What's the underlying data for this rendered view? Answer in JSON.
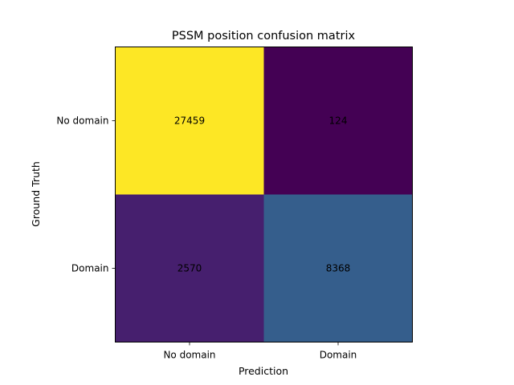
{
  "chart_data": {
    "type": "heatmap",
    "title": "PSSM position confusion matrix",
    "xlabel": "Prediction",
    "ylabel": "Ground Truth",
    "x_categories": [
      "No domain",
      "Domain"
    ],
    "y_categories": [
      "No domain",
      "Domain"
    ],
    "values": [
      [
        27459,
        124
      ],
      [
        2570,
        8368
      ]
    ],
    "colormap": "viridis",
    "colors": {
      "min": "#440154",
      "max": "#fde725"
    },
    "grid": false,
    "legend": "none"
  }
}
